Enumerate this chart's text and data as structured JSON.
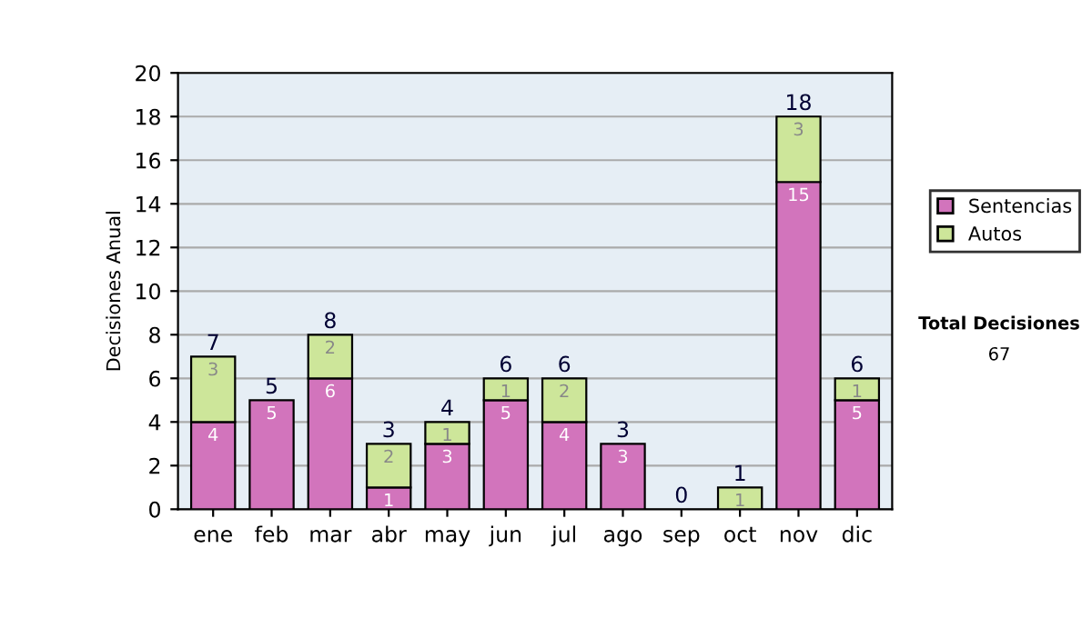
{
  "chart_data": {
    "type": "bar",
    "stacked": true,
    "ylabel": "Decisiones Anual",
    "categories": [
      "ene",
      "feb",
      "mar",
      "abr",
      "may",
      "jun",
      "jul",
      "ago",
      "sep",
      "oct",
      "nov",
      "dic"
    ],
    "series": [
      {
        "name": "Sentencias",
        "color": "#d274bc",
        "values": [
          4,
          5,
          6,
          1,
          3,
          5,
          4,
          3,
          0,
          0,
          15,
          5
        ],
        "value_labels": [
          "4",
          "5",
          "6",
          "1",
          "3",
          "5",
          "4",
          "3",
          null,
          null,
          "15",
          "5"
        ]
      },
      {
        "name": "Autos",
        "color": "#cde69a",
        "values": [
          3,
          0,
          2,
          2,
          1,
          1,
          2,
          0,
          0,
          1,
          3,
          1
        ],
        "value_labels": [
          "3",
          null,
          "2",
          "2",
          "1",
          "1",
          "2",
          null,
          null,
          "1",
          "3",
          "1"
        ]
      }
    ],
    "totals": [
      "7",
      "5",
      "8",
      "3",
      "4",
      "6",
      "6",
      "3",
      "0",
      "1",
      "18",
      "6"
    ],
    "ylim": [
      0,
      20
    ],
    "yticks": [
      0,
      2,
      4,
      6,
      8,
      10,
      12,
      14,
      16,
      18,
      20
    ],
    "grid": "y",
    "legend": "right",
    "annotations": [
      "Total Decisiones",
      "67"
    ]
  }
}
